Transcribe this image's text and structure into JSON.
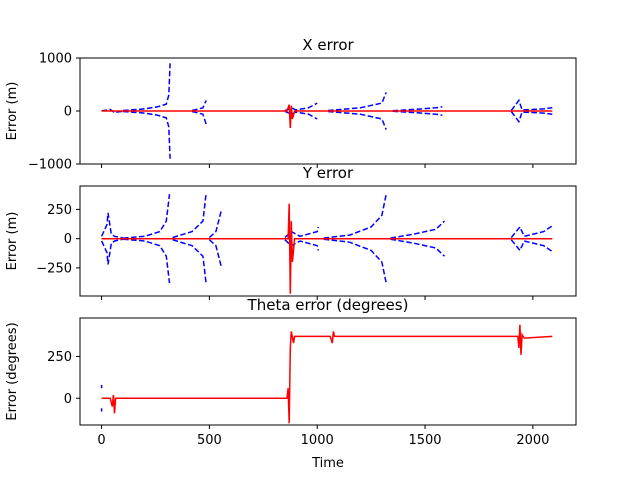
{
  "chart_data": [
    {
      "type": "line",
      "title": "X error",
      "xlabel": "",
      "ylabel": "Error (m)",
      "xlim": [
        -100,
        2200
      ],
      "ylim": [
        -1000,
        1000
      ],
      "yticks": [
        -1000,
        0,
        1000
      ],
      "xticks": [
        0,
        500,
        1000,
        1500,
        2000
      ],
      "xticklabels_visible": false,
      "grid": false,
      "series": [
        {
          "style": "dashed",
          "color": "#0000ff",
          "segments": [
            [
              [
                0,
                5
              ],
              [
                20,
                15
              ],
              [
                40,
                30
              ],
              [
                50,
                0
              ],
              [
                60,
                -30
              ],
              [
                80,
                -15
              ],
              [
                100,
                -5
              ]
            ],
            [
              [
                100,
                10
              ],
              [
                200,
                40
              ],
              [
                260,
                80
              ],
              [
                300,
                130
              ],
              [
                312,
                300
              ],
              [
                318,
                900
              ]
            ],
            [
              [
                100,
                -10
              ],
              [
                200,
                -40
              ],
              [
                260,
                -80
              ],
              [
                300,
                -130
              ],
              [
                312,
                -300
              ],
              [
                318,
                -900
              ]
            ],
            [
              [
                420,
                10
              ],
              [
                470,
                60
              ],
              [
                485,
                200
              ]
            ],
            [
              [
                420,
                -10
              ],
              [
                470,
                -60
              ],
              [
                485,
                -250
              ]
            ],
            [
              [
                850,
                5
              ],
              [
                880,
                60
              ],
              [
                900,
                20
              ],
              [
                960,
                60
              ],
              [
                1000,
                150
              ]
            ],
            [
              [
                850,
                -5
              ],
              [
                880,
                -60
              ],
              [
                900,
                -20
              ],
              [
                960,
                -60
              ],
              [
                1000,
                -150
              ]
            ],
            [
              [
                1050,
                10
              ],
              [
                1200,
                60
              ],
              [
                1300,
                150
              ],
              [
                1320,
                350
              ]
            ],
            [
              [
                1050,
                -10
              ],
              [
                1200,
                -60
              ],
              [
                1300,
                -150
              ],
              [
                1320,
                -350
              ]
            ],
            [
              [
                1350,
                5
              ],
              [
                1450,
                30
              ],
              [
                1550,
                60
              ],
              [
                1580,
                80
              ]
            ],
            [
              [
                1350,
                -5
              ],
              [
                1450,
                -30
              ],
              [
                1550,
                -60
              ],
              [
                1580,
                -80
              ]
            ],
            [
              [
                1900,
                10
              ],
              [
                1935,
                200
              ],
              [
                1950,
                20
              ],
              [
                2050,
                40
              ],
              [
                2090,
                60
              ]
            ],
            [
              [
                1900,
                -10
              ],
              [
                1935,
                -200
              ],
              [
                1950,
                -20
              ],
              [
                2050,
                -40
              ],
              [
                2090,
                -60
              ]
            ]
          ]
        },
        {
          "style": "solid",
          "color": "#ff0000",
          "segments": [
            [
              [
                0,
                0
              ],
              [
                860,
                0
              ],
              [
                870,
                120
              ],
              [
                875,
                -320
              ],
              [
                880,
                100
              ],
              [
                885,
                -150
              ],
              [
                895,
                0
              ],
              [
                2090,
                0
              ]
            ]
          ]
        }
      ]
    },
    {
      "type": "line",
      "title": "Y error",
      "xlabel": "",
      "ylabel": "Error (m)",
      "xlim": [
        -100,
        2200
      ],
      "ylim": [
        -490,
        450
      ],
      "yticks": [
        -250,
        0,
        250
      ],
      "xticks": [
        0,
        500,
        1000,
        1500,
        2000
      ],
      "xticklabels_visible": false,
      "grid": false,
      "series": [
        {
          "style": "dashed",
          "color": "#0000ff",
          "segments": [
            [
              [
                0,
                20
              ],
              [
                25,
                120
              ],
              [
                30,
                220
              ],
              [
                45,
                40
              ],
              [
                60,
                20
              ],
              [
                100,
                5
              ]
            ],
            [
              [
                0,
                -20
              ],
              [
                25,
                -120
              ],
              [
                30,
                -220
              ],
              [
                45,
                -40
              ],
              [
                60,
                -20
              ],
              [
                100,
                -5
              ]
            ],
            [
              [
                100,
                5
              ],
              [
                200,
                20
              ],
              [
                270,
                60
              ],
              [
                300,
                150
              ],
              [
                315,
                380
              ]
            ],
            [
              [
                100,
                -5
              ],
              [
                200,
                -20
              ],
              [
                270,
                -60
              ],
              [
                300,
                -150
              ],
              [
                315,
                -380
              ]
            ],
            [
              [
                330,
                10
              ],
              [
                420,
                60
              ],
              [
                470,
                150
              ],
              [
                485,
                390
              ]
            ],
            [
              [
                330,
                -10
              ],
              [
                420,
                -60
              ],
              [
                470,
                -150
              ],
              [
                485,
                -390
              ]
            ],
            [
              [
                500,
                10
              ],
              [
                530,
                60
              ],
              [
                555,
                240
              ]
            ],
            [
              [
                500,
                -10
              ],
              [
                530,
                -60
              ],
              [
                555,
                -240
              ]
            ],
            [
              [
                850,
                10
              ],
              [
                880,
                60
              ],
              [
                920,
                20
              ],
              [
                1000,
                60
              ],
              [
                1005,
                100
              ]
            ],
            [
              [
                850,
                -10
              ],
              [
                880,
                -60
              ],
              [
                920,
                -20
              ],
              [
                1000,
                -60
              ],
              [
                1005,
                -100
              ]
            ],
            [
              [
                1030,
                5
              ],
              [
                1150,
                30
              ],
              [
                1250,
                100
              ],
              [
                1300,
                200
              ],
              [
                1320,
                380
              ]
            ],
            [
              [
                1030,
                -5
              ],
              [
                1150,
                -30
              ],
              [
                1250,
                -100
              ],
              [
                1300,
                -200
              ],
              [
                1320,
                -380
              ]
            ],
            [
              [
                1340,
                5
              ],
              [
                1450,
                40
              ],
              [
                1550,
                80
              ],
              [
                1590,
                150
              ]
            ],
            [
              [
                1340,
                -5
              ],
              [
                1450,
                -40
              ],
              [
                1550,
                -80
              ],
              [
                1590,
                -150
              ]
            ],
            [
              [
                1900,
                10
              ],
              [
                1940,
                100
              ],
              [
                1960,
                20
              ],
              [
                2050,
                60
              ],
              [
                2090,
                110
              ]
            ],
            [
              [
                1900,
                -10
              ],
              [
                1940,
                -100
              ],
              [
                1960,
                -20
              ],
              [
                2050,
                -60
              ],
              [
                2090,
                -110
              ]
            ]
          ]
        },
        {
          "style": "solid",
          "color": "#ff0000",
          "segments": [
            [
              [
                0,
                0
              ],
              [
                865,
                0
              ],
              [
                870,
                300
              ],
              [
                875,
                -470
              ],
              [
                880,
                150
              ],
              [
                885,
                -200
              ],
              [
                895,
                0
              ],
              [
                2090,
                0
              ]
            ]
          ]
        }
      ]
    },
    {
      "type": "line",
      "title": "Theta error (degrees)",
      "xlabel": "Time",
      "ylabel": "Error (degrees)",
      "xlim": [
        -100,
        2200
      ],
      "ylim": [
        -160,
        480
      ],
      "yticks": [
        0,
        250
      ],
      "xticks": [
        0,
        500,
        1000,
        1500,
        2000
      ],
      "xticklabels_visible": true,
      "grid": false,
      "series": [
        {
          "style": "solid",
          "color": "#0000ff",
          "segments": [
            [
              [
                0,
                80
              ],
              [
                0,
                60
              ]
            ],
            [
              [
                0,
                -60
              ],
              [
                0,
                -80
              ]
            ]
          ]
        },
        {
          "style": "solid",
          "color": "#ff0000",
          "segments": [
            [
              [
                0,
                0
              ],
              [
                40,
                0
              ],
              [
                50,
                -50
              ],
              [
                55,
                20
              ],
              [
                60,
                -90
              ],
              [
                65,
                0
              ],
              [
                860,
                0
              ],
              [
                865,
                60
              ],
              [
                870,
                -150
              ],
              [
                875,
                300
              ],
              [
                880,
                400
              ],
              [
                890,
                330
              ],
              [
                895,
                370
              ],
              [
                1060,
                370
              ],
              [
                1070,
                330
              ],
              [
                1075,
                400
              ],
              [
                1080,
                370
              ],
              [
                1930,
                370
              ],
              [
                1935,
                300
              ],
              [
                1940,
                440
              ],
              [
                1945,
                260
              ],
              [
                1950,
                380
              ],
              [
                1960,
                360
              ],
              [
                2090,
                370
              ]
            ]
          ]
        }
      ]
    }
  ]
}
